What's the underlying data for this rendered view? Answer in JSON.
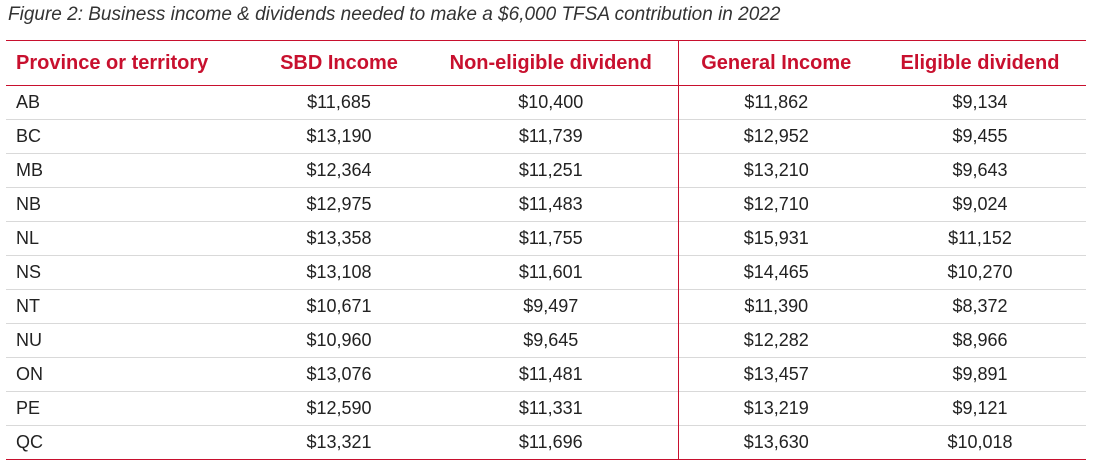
{
  "caption": "Figure 2: Business income & dividends needed to make a $6,000 TFSA contribution in 2022",
  "headers": [
    "Province or territory",
    "SBD Income",
    "Non-eligible dividend",
    "General Income",
    "Eligible dividend"
  ],
  "rows": [
    [
      "AB",
      "$11,685",
      "$10,400",
      "$11,862",
      "$9,134"
    ],
    [
      "BC",
      "$13,190",
      "$11,739",
      "$12,952",
      "$9,455"
    ],
    [
      "MB",
      "$12,364",
      "$11,251",
      "$13,210",
      "$9,643"
    ],
    [
      "NB",
      "$12,975",
      "$11,483",
      "$12,710",
      "$9,024"
    ],
    [
      "NL",
      "$13,358",
      "$11,755",
      "$15,931",
      "$11,152"
    ],
    [
      "NS",
      "$13,108",
      "$11,601",
      "$14,465",
      "$10,270"
    ],
    [
      "NT",
      "$10,671",
      "$9,497",
      "$11,390",
      "$8,372"
    ],
    [
      "NU",
      "$10,960",
      "$9,645",
      "$12,282",
      "$8,966"
    ],
    [
      "ON",
      "$13,076",
      "$11,481",
      "$13,457",
      "$9,891"
    ],
    [
      "PE",
      "$12,590",
      "$11,331",
      "$13,219",
      "$9,121"
    ],
    [
      "QC",
      "$13,321",
      "$11,696",
      "$13,630",
      "$10,018"
    ]
  ],
  "colors": {
    "accent": "#c8102e",
    "row_divider": "#d9d9d9"
  }
}
